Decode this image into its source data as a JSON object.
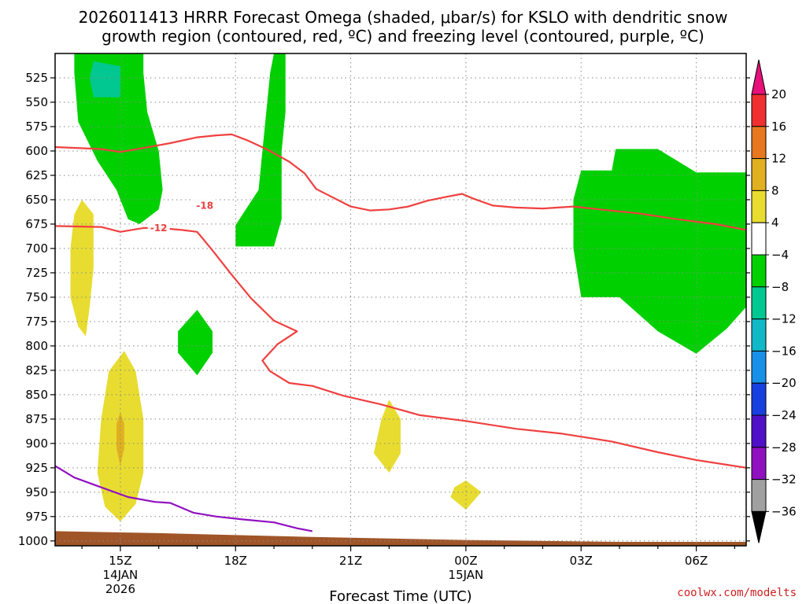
{
  "chart_data": {
    "type": "contour",
    "title_line1": "2026011413 HRRR Forecast Omega (shaded, μbar/s) for KSLO with dendritic snow",
    "title_line2": "growth region (contoured, red, ºC) and freezing level (contoured, purple, ºC)",
    "xlabel": "Forecast Time (UTC)",
    "credit": "coolwx.com/modelts",
    "x_hours_range": [
      13.3,
      31.3
    ],
    "y_levels_hpa": [
      525,
      550,
      575,
      600,
      625,
      650,
      675,
      700,
      725,
      750,
      775,
      800,
      825,
      850,
      875,
      900,
      925,
      950,
      975,
      1000
    ],
    "ylim_hpa": [
      1005,
      500
    ],
    "x_ticks": [
      {
        "hour": 15,
        "lines": [
          "15Z",
          "14JAN",
          "2026"
        ]
      },
      {
        "hour": 18,
        "lines": [
          "18Z"
        ]
      },
      {
        "hour": 21,
        "lines": [
          "21Z"
        ]
      },
      {
        "hour": 24,
        "lines": [
          "00Z",
          "15JAN"
        ]
      },
      {
        "hour": 27,
        "lines": [
          "03Z"
        ]
      },
      {
        "hour": 30,
        "lines": [
          "06Z"
        ]
      }
    ],
    "colorbar": {
      "labels": [
        "20",
        "16",
        "12",
        "8",
        "4",
        "−4",
        "−8",
        "−12",
        "−16",
        "−20",
        "−24",
        "−28",
        "−32",
        "−36"
      ],
      "colors": [
        "#e8107a",
        "#f03030",
        "#e87820",
        "#e0b020",
        "#e8dc30",
        "#ffffff",
        "#00d000",
        "#00c890",
        "#10b8c8",
        "#1890e8",
        "#1840e0",
        "#5010c8",
        "#9010c0",
        "#a0a0a0",
        "#000000"
      ]
    },
    "contours": [
      {
        "name": "-18",
        "color": "#f04040",
        "label_at": [
          17.2,
          656
        ],
        "points": [
          [
            13.3,
            596
          ],
          [
            14.5,
            598
          ],
          [
            15.0,
            601
          ],
          [
            15.6,
            597
          ],
          [
            16.3,
            592
          ],
          [
            17.0,
            586
          ],
          [
            17.5,
            584
          ],
          [
            17.9,
            583
          ],
          [
            18.3,
            589
          ],
          [
            18.8,
            598
          ],
          [
            19.4,
            611
          ],
          [
            19.8,
            623
          ],
          [
            20.1,
            639
          ],
          [
            20.5,
            647
          ],
          [
            21.0,
            657
          ],
          [
            21.5,
            661
          ],
          [
            22.0,
            660
          ],
          [
            22.5,
            657
          ],
          [
            23.0,
            651
          ],
          [
            23.5,
            647
          ],
          [
            23.9,
            644
          ],
          [
            24.2,
            649
          ],
          [
            24.7,
            656
          ],
          [
            25.3,
            658
          ],
          [
            26.0,
            659
          ],
          [
            26.8,
            657
          ],
          [
            27.5,
            660
          ],
          [
            28.5,
            664
          ],
          [
            29.5,
            670
          ],
          [
            30.5,
            675
          ],
          [
            31.3,
            681
          ]
        ]
      },
      {
        "name": "-12",
        "color": "#f04040",
        "label_at": [
          16.0,
          679
        ],
        "points": [
          [
            13.3,
            677
          ],
          [
            14.5,
            678
          ],
          [
            15.0,
            683
          ],
          [
            15.6,
            679
          ],
          [
            16.0,
            679
          ],
          [
            16.6,
            681
          ],
          [
            17.0,
            683
          ],
          [
            17.4,
            702
          ],
          [
            17.9,
            727
          ],
          [
            18.4,
            751
          ],
          [
            19.0,
            774
          ],
          [
            19.6,
            785
          ],
          [
            19.1,
            798
          ],
          [
            18.7,
            815
          ],
          [
            18.9,
            826
          ],
          [
            19.4,
            838
          ],
          [
            20.0,
            841
          ],
          [
            20.8,
            851
          ],
          [
            21.8,
            860
          ],
          [
            22.8,
            871
          ],
          [
            24.0,
            877
          ],
          [
            25.3,
            885
          ],
          [
            26.5,
            890
          ],
          [
            27.8,
            898
          ],
          [
            29.0,
            909
          ],
          [
            30.0,
            917
          ],
          [
            31.3,
            925
          ]
        ]
      },
      {
        "name": "freezing",
        "color": "#9010c0",
        "points": [
          [
            13.3,
            923
          ],
          [
            13.8,
            935
          ],
          [
            14.5,
            945
          ],
          [
            15.2,
            955
          ],
          [
            15.9,
            960
          ],
          [
            16.3,
            961
          ],
          [
            16.9,
            971
          ],
          [
            17.5,
            975
          ],
          [
            18.2,
            978
          ],
          [
            19.0,
            981
          ],
          [
            19.6,
            987
          ],
          [
            20.0,
            990
          ]
        ]
      }
    ],
    "shaded_regions": [
      {
        "value": "-4 to -8",
        "color": "#00d000",
        "points": [
          [
            13.8,
            500
          ],
          [
            15.6,
            500
          ],
          [
            15.6,
            520
          ],
          [
            15.7,
            560
          ],
          [
            16.0,
            600
          ],
          [
            16.1,
            640
          ],
          [
            16.0,
            660
          ],
          [
            15.5,
            675
          ],
          [
            15.2,
            670
          ],
          [
            14.9,
            640
          ],
          [
            14.4,
            610
          ],
          [
            13.9,
            570
          ],
          [
            13.8,
            520
          ]
        ]
      },
      {
        "value": "-8 to -12",
        "color": "#00c890",
        "points": [
          [
            14.3,
            508
          ],
          [
            15.0,
            513
          ],
          [
            15.0,
            545
          ],
          [
            14.3,
            545
          ],
          [
            14.2,
            525
          ]
        ]
      },
      {
        "value": "-4 to -8",
        "color": "#00d000",
        "points": [
          [
            19.0,
            500
          ],
          [
            19.3,
            500
          ],
          [
            19.3,
            560
          ],
          [
            19.2,
            600
          ],
          [
            19.2,
            640
          ],
          [
            19.2,
            670
          ],
          [
            19.0,
            698
          ],
          [
            18.0,
            698
          ],
          [
            18.0,
            676
          ],
          [
            18.6,
            640
          ],
          [
            18.7,
            600
          ],
          [
            18.8,
            560
          ],
          [
            18.9,
            520
          ]
        ]
      },
      {
        "value": "-4 to -8",
        "color": "#00d000",
        "points": [
          [
            17.0,
            763
          ],
          [
            17.4,
            785
          ],
          [
            17.4,
            807
          ],
          [
            17.0,
            830
          ],
          [
            16.5,
            807
          ],
          [
            16.5,
            785
          ]
        ]
      },
      {
        "value": "-4 to -8",
        "color": "#00d000",
        "points": [
          [
            27.0,
            620
          ],
          [
            27.8,
            620
          ],
          [
            27.9,
            598
          ],
          [
            29.0,
            598
          ],
          [
            30.0,
            622
          ],
          [
            31.3,
            622
          ],
          [
            31.3,
            760
          ],
          [
            30.8,
            782
          ],
          [
            30.0,
            808
          ],
          [
            29.0,
            785
          ],
          [
            28.0,
            750
          ],
          [
            27.0,
            750
          ],
          [
            26.8,
            700
          ],
          [
            26.8,
            650
          ]
        ]
      },
      {
        "value": "4 to 8",
        "color": "#e8dc30",
        "points": [
          [
            14.0,
            650
          ],
          [
            14.3,
            665
          ],
          [
            14.3,
            720
          ],
          [
            14.2,
            760
          ],
          [
            14.1,
            790
          ],
          [
            13.9,
            780
          ],
          [
            13.7,
            750
          ],
          [
            13.7,
            700
          ],
          [
            13.8,
            665
          ]
        ]
      },
      {
        "value": "4 to 8",
        "color": "#e8dc30",
        "points": [
          [
            15.1,
            805
          ],
          [
            15.4,
            826
          ],
          [
            15.6,
            875
          ],
          [
            15.6,
            930
          ],
          [
            15.4,
            962
          ],
          [
            15.0,
            980
          ],
          [
            14.6,
            965
          ],
          [
            14.4,
            930
          ],
          [
            14.5,
            875
          ],
          [
            14.7,
            826
          ]
        ]
      },
      {
        "value": "8 to 12",
        "color": "#e0b020",
        "points": [
          [
            15.0,
            868
          ],
          [
            15.1,
            880
          ],
          [
            15.1,
            905
          ],
          [
            15.0,
            923
          ],
          [
            14.9,
            905
          ],
          [
            14.9,
            880
          ]
        ]
      },
      {
        "value": "4 to 8",
        "color": "#e8dc30",
        "points": [
          [
            22.0,
            855
          ],
          [
            22.3,
            875
          ],
          [
            22.3,
            910
          ],
          [
            22.0,
            930
          ],
          [
            21.6,
            910
          ],
          [
            21.8,
            875
          ]
        ]
      },
      {
        "value": "4 to 8",
        "color": "#e8dc30",
        "points": [
          [
            24.0,
            938
          ],
          [
            24.4,
            950
          ],
          [
            24.0,
            968
          ],
          [
            23.6,
            955
          ],
          [
            23.7,
            945
          ]
        ]
      }
    ],
    "terrain": {
      "color": "#a05528",
      "top_points": [
        [
          13.3,
          990
        ],
        [
          16,
          992
        ],
        [
          20,
          996
        ],
        [
          24,
          999
        ],
        [
          28,
          1001
        ],
        [
          31.3,
          1001
        ]
      ]
    }
  }
}
